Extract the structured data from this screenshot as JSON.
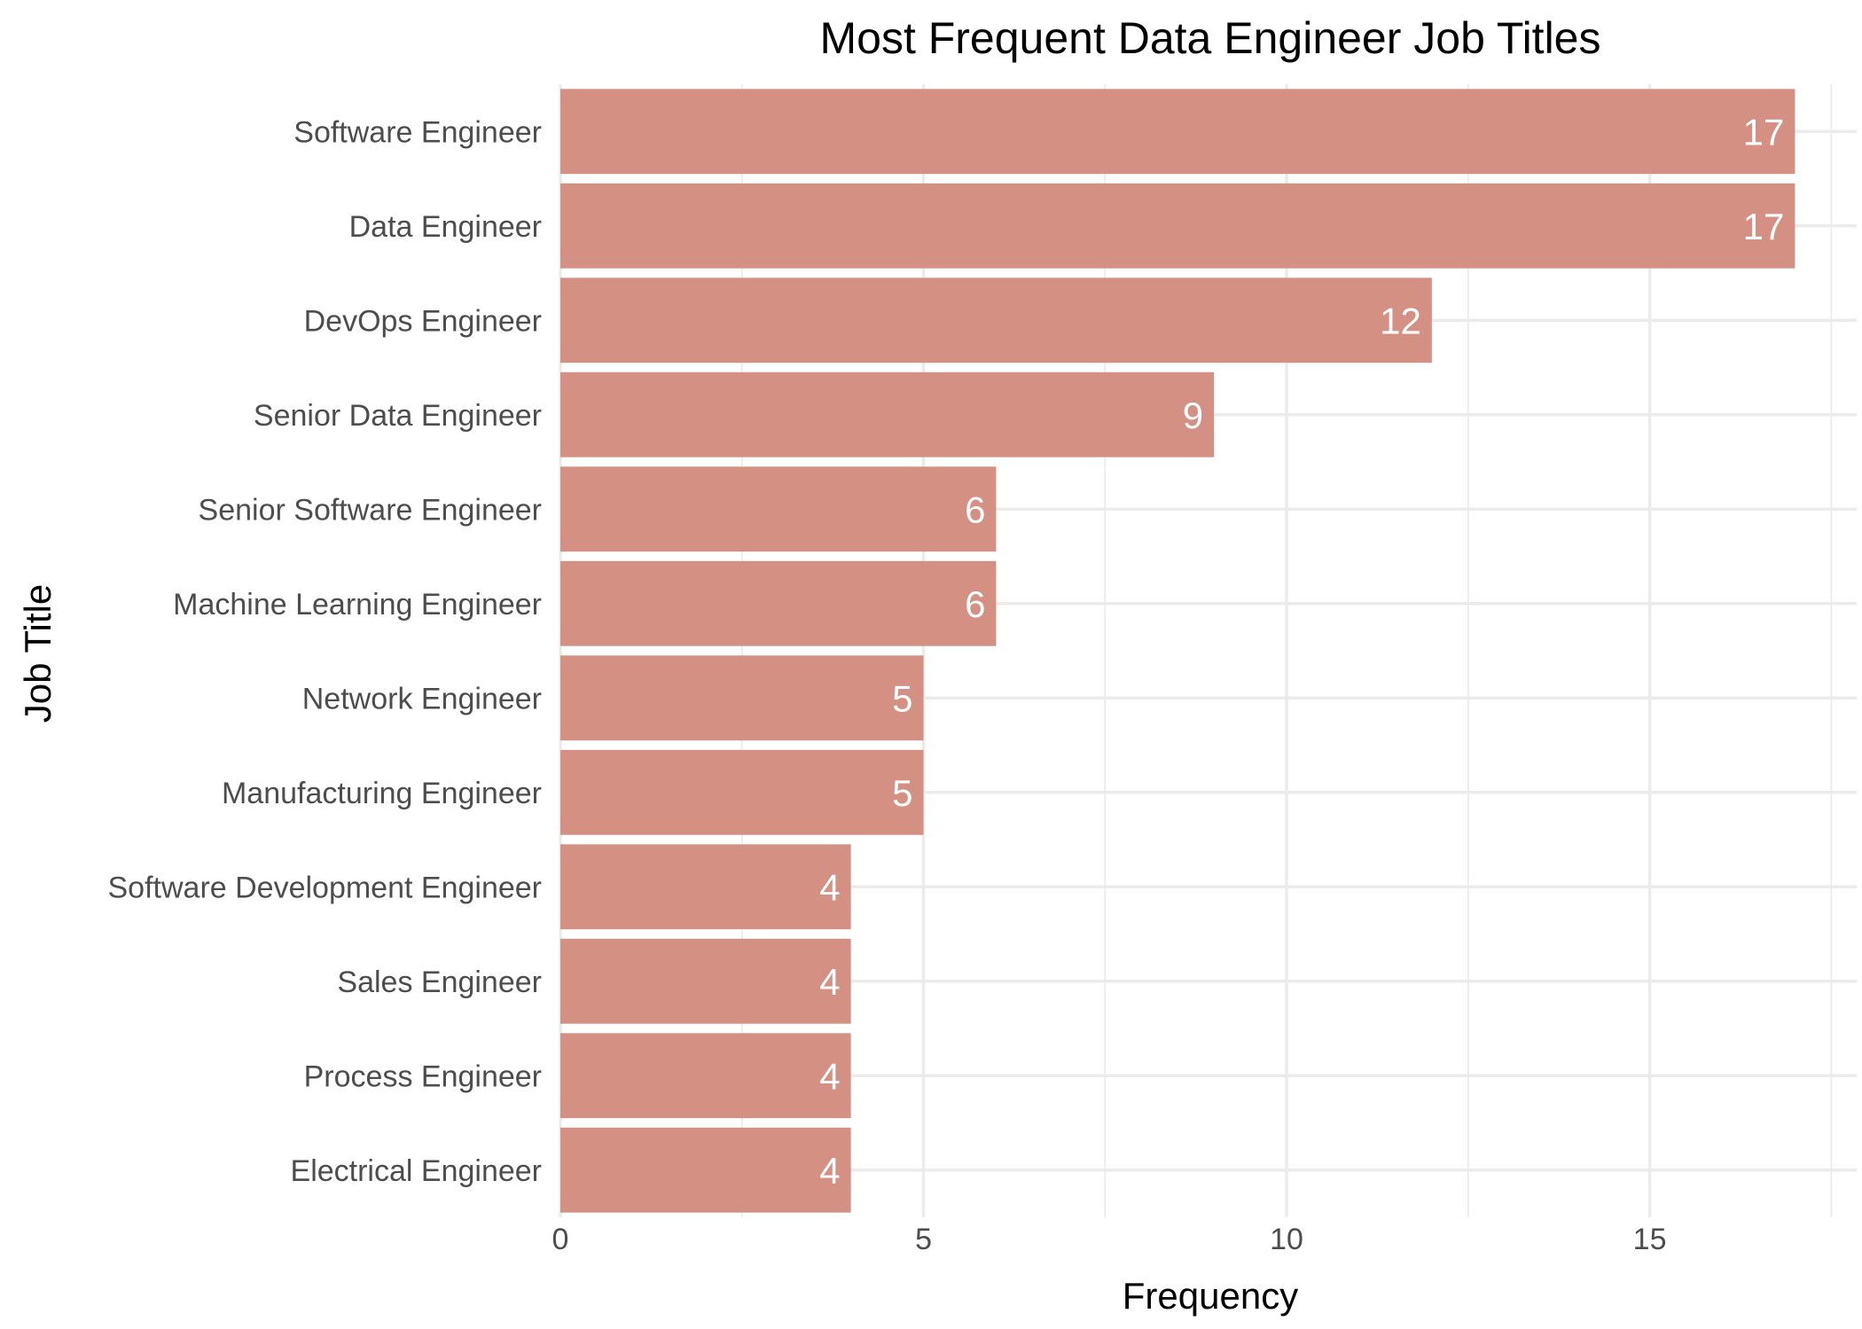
{
  "colors": {
    "bar": "#d39083",
    "grid": "#ebebeb",
    "tick_text": "#4d4d4d",
    "label_text": "#ffffff",
    "background": "#ffffff"
  },
  "chart_data": {
    "type": "bar",
    "orientation": "horizontal",
    "title": "Most Frequent Data Engineer Job Titles",
    "xlabel": "Frequency",
    "ylabel": "Job Title",
    "categories": [
      "Software Engineer",
      "Data Engineer",
      "DevOps Engineer",
      "Senior Data Engineer",
      "Senior Software Engineer",
      "Machine Learning Engineer",
      "Network Engineer",
      "Manufacturing Engineer",
      "Software Development Engineer",
      "Sales Engineer",
      "Process Engineer",
      "Electrical Engineer"
    ],
    "values": [
      17,
      17,
      12,
      9,
      6,
      6,
      5,
      5,
      4,
      4,
      4,
      4
    ],
    "data_labels": [
      "17",
      "17",
      "12",
      "9",
      "6",
      "6",
      "5",
      "5",
      "4",
      "4",
      "4",
      "4"
    ],
    "xlim": [
      0,
      17.85
    ],
    "xticks": [
      0,
      5,
      10,
      15
    ],
    "xtick_labels": [
      "0",
      "5",
      "10",
      "15"
    ],
    "grid": true,
    "legend": "none"
  }
}
